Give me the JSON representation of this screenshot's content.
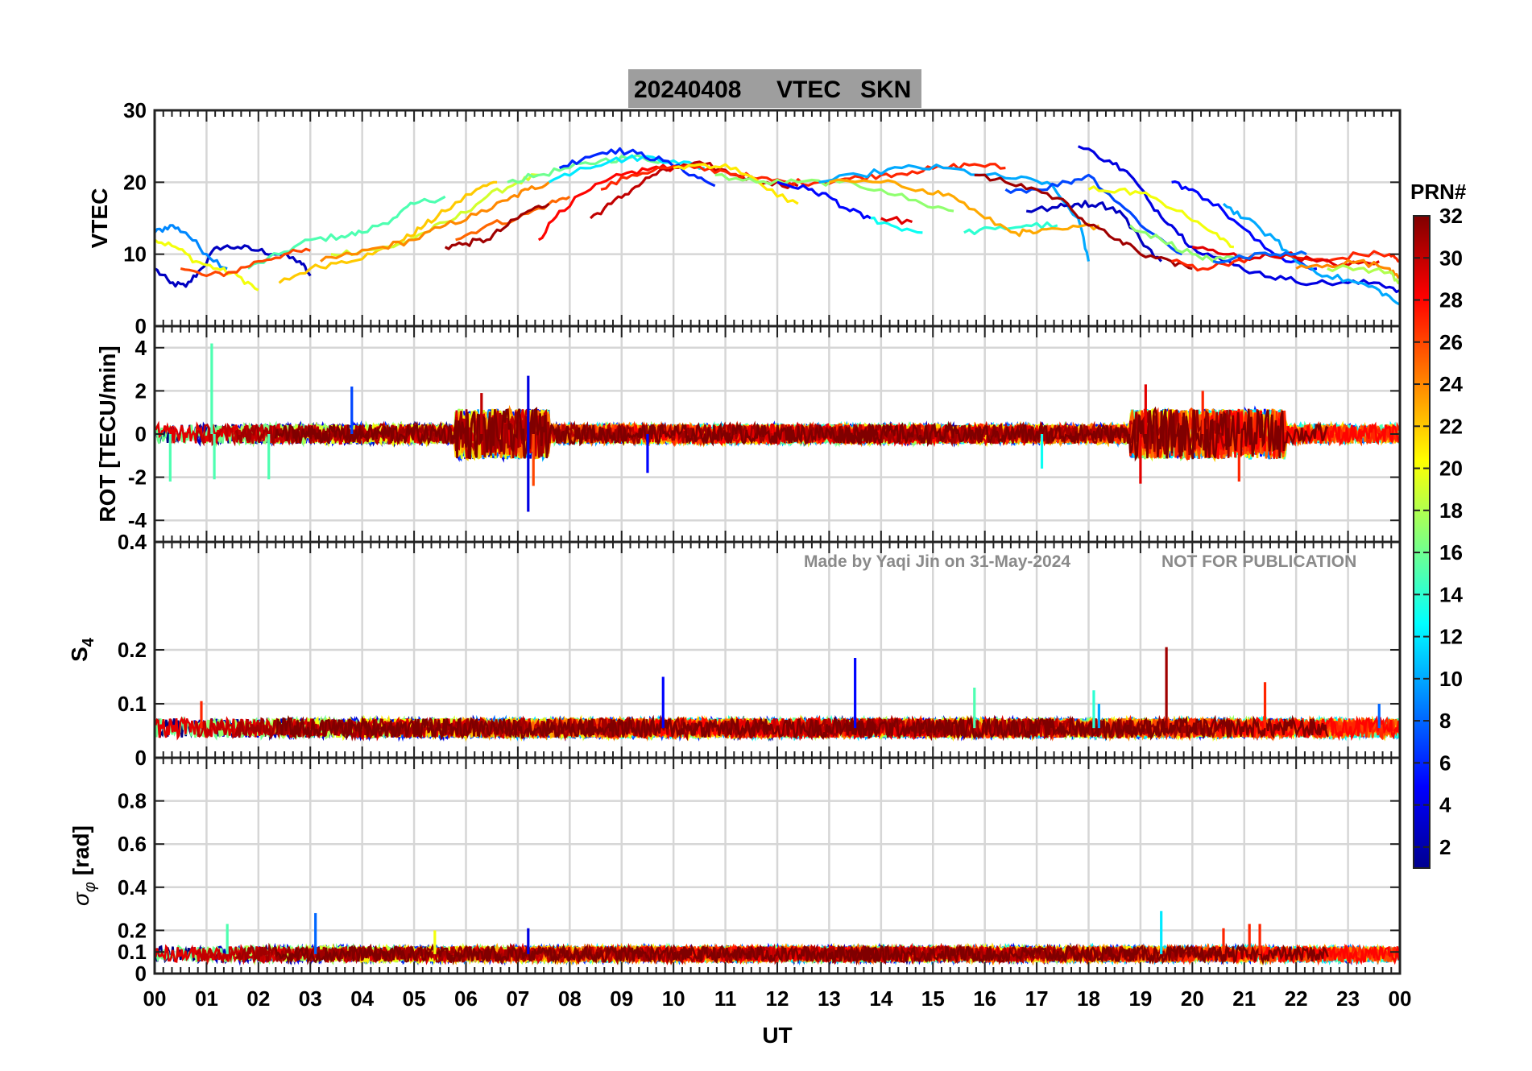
{
  "chart_data": {
    "type": "line",
    "title": {
      "date": "20240408",
      "quantity": "VTEC",
      "station": "SKN"
    },
    "xlabel": "UT",
    "x_ticks": [
      "00",
      "01",
      "02",
      "03",
      "04",
      "05",
      "06",
      "07",
      "08",
      "09",
      "10",
      "11",
      "12",
      "13",
      "14",
      "15",
      "16",
      "17",
      "18",
      "19",
      "20",
      "21",
      "22",
      "23",
      "00"
    ],
    "xlim": [
      0,
      24
    ],
    "watermark": {
      "author": "Made by Yaqi Jin on 31-May-2024",
      "notice": "NOT FOR PUBLICATION"
    },
    "colorbar": {
      "title": "PRN#",
      "range": [
        1,
        32
      ],
      "ticks": [
        2,
        4,
        6,
        8,
        10,
        12,
        14,
        16,
        18,
        20,
        22,
        24,
        26,
        28,
        30,
        32
      ],
      "colormap": "jet"
    },
    "panels": [
      {
        "name": "vtec",
        "ylabel": "VTEC",
        "ylim": [
          0,
          30
        ],
        "yticks": [
          0,
          10,
          20,
          30
        ],
        "series": [
          {
            "prn": 3,
            "x": [
              0.0,
              0.3,
              0.6,
              0.9,
              1.2,
              1.6,
              2.0,
              2.4,
              2.8,
              3.0
            ],
            "y": [
              8,
              6,
              5.5,
              8,
              11,
              11,
              10.5,
              10,
              9,
              7
            ]
          },
          {
            "prn": 9,
            "x": [
              0.0,
              0.3,
              0.6,
              1.0,
              1.4
            ],
            "y": [
              13,
              14,
              13,
              10,
              8
            ]
          },
          {
            "prn": 20,
            "x": [
              0.0,
              0.4,
              0.8,
              1.2,
              1.6,
              2.0
            ],
            "y": [
              12,
              11,
              9,
              8,
              7,
              5
            ]
          },
          {
            "prn": 15,
            "x": [
              1.8,
              2.4,
              3.0,
              3.6,
              4.0,
              4.6,
              5.0,
              5.6
            ],
            "y": [
              8,
              10,
              12,
              12.5,
              13,
              15,
              17,
              18
            ]
          },
          {
            "prn": 26,
            "x": [
              0.5,
              1.0,
              1.5,
              2.0,
              2.5,
              3.0
            ],
            "y": [
              8,
              7,
              7.5,
              9,
              10,
              10.5
            ]
          },
          {
            "prn": 22,
            "x": [
              2.4,
              3.0,
              3.6,
              4.2,
              4.8,
              5.2,
              5.6,
              6.2,
              6.6
            ],
            "y": [
              6,
              8,
              9,
              10,
              12,
              14,
              16,
              19,
              20
            ]
          },
          {
            "prn": 19,
            "x": [
              3.4,
              4.0,
              4.6,
              5.2,
              5.8,
              6.4,
              7.0,
              7.4
            ],
            "y": [
              10,
              10.5,
              11,
              13,
              15,
              18,
              20,
              21
            ]
          },
          {
            "prn": 24,
            "x": [
              3.2,
              3.8,
              4.4,
              5.0,
              5.6,
              6.2,
              6.8,
              7.2,
              7.6
            ],
            "y": [
              9,
              10,
              11,
              12,
              14,
              15.5,
              17.5,
              19,
              20
            ]
          },
          {
            "prn": 25,
            "x": [
              5.8,
              6.4,
              7.0,
              7.6,
              8.0
            ],
            "y": [
              12,
              14,
              15,
              17,
              18
            ]
          },
          {
            "prn": 31,
            "x": [
              5.6,
              6.0,
              6.4,
              6.8,
              7.2,
              7.6
            ],
            "y": [
              11,
              11.5,
              12,
              14,
              16,
              17
            ]
          },
          {
            "prn": 28,
            "x": [
              7.4,
              7.8,
              8.4,
              9.0,
              9.6,
              10.0
            ],
            "y": [
              12,
              16,
              19,
              21,
              22,
              22
            ]
          },
          {
            "prn": 16,
            "x": [
              6.8,
              7.4,
              8.0,
              8.6,
              9.2,
              9.8
            ],
            "y": [
              20,
              21,
              22,
              23,
              23.5,
              23
            ]
          },
          {
            "prn": 12,
            "x": [
              7.6,
              8.2,
              8.8,
              9.4,
              10.0,
              10.6
            ],
            "y": [
              20,
              22,
              23,
              23.5,
              23,
              22
            ]
          },
          {
            "prn": 6,
            "x": [
              7.8,
              8.3,
              8.8,
              9.3,
              9.8,
              10.4,
              10.8
            ],
            "y": [
              22,
              23.5,
              24.5,
              24,
              23,
              21,
              19.5
            ]
          },
          {
            "prn": 30,
            "x": [
              8.4,
              8.8,
              9.2,
              9.6,
              10.0,
              10.6,
              11.2,
              11.8,
              12.4
            ],
            "y": [
              15,
              17,
              19,
              21,
              22,
              22.5,
              21,
              20,
              19.5
            ]
          },
          {
            "prn": 27,
            "x": [
              8.6,
              9.2,
              9.8,
              10.4,
              11.0,
              11.6,
              12.2,
              12.8,
              13.4,
              14.0,
              14.6,
              15.2,
              15.8,
              16.4
            ],
            "y": [
              19,
              21,
              22,
              22,
              21.5,
              20.5,
              20,
              20,
              20.5,
              21,
              21.5,
              22,
              22.5,
              22
            ]
          },
          {
            "prn": 21,
            "x": [
              10.0,
              10.6,
              11.2,
              11.8,
              12.4
            ],
            "y": [
              22,
              22.5,
              22,
              19,
              17
            ]
          },
          {
            "prn": 17,
            "x": [
              10.8,
              11.6,
              12.4,
              13.2,
              14.0,
              14.8,
              15.4
            ],
            "y": [
              21,
              20,
              20,
              20,
              19,
              17,
              16
            ]
          },
          {
            "prn": 5,
            "x": [
              12.0,
              12.6,
              13.0,
              13.4,
              13.8
            ],
            "y": [
              20,
              19,
              18,
              16,
              15
            ]
          },
          {
            "prn": 10,
            "x": [
              12.8,
              13.6,
              14.4,
              15.2,
              16.0,
              16.6,
              17.2,
              17.8,
              18.0
            ],
            "y": [
              20,
              21,
              22,
              22,
              21,
              20.5,
              20,
              15,
              9
            ]
          },
          {
            "prn": 13,
            "x": [
              13.8,
              14.2,
              14.8
            ],
            "y": [
              15,
              14,
              13
            ]
          },
          {
            "prn": 29,
            "x": [
              14.0,
              14.6
            ],
            "y": [
              15,
              14.5
            ]
          },
          {
            "prn": 14,
            "x": [
              15.6,
              16.2,
              16.8,
              17.4
            ],
            "y": [
              13,
              13.5,
              14,
              14
            ]
          },
          {
            "prn": 23,
            "x": [
              13.0,
              14.0,
              14.8,
              15.4,
              16.0,
              16.6,
              17.0,
              17.6,
              18.2
            ],
            "y": [
              20,
              20,
              19,
              18,
              15,
              13,
              13,
              13.5,
              14
            ]
          },
          {
            "prn": 7,
            "x": [
              16.4,
              17.0,
              17.6,
              18.0,
              18.6,
              19.2,
              19.8
            ],
            "y": [
              19,
              19,
              20,
              21,
              17,
              13,
              10
            ]
          },
          {
            "prn": 3,
            "x": [
              16.8,
              17.4,
              17.8,
              18.2,
              18.6,
              19.0,
              19.4
            ],
            "y": [
              16,
              16.5,
              17,
              17,
              16,
              12,
              9
            ]
          },
          {
            "prn": 4,
            "x": [
              17.8,
              18.4,
              18.8,
              19.2,
              19.6,
              20.0,
              20.6,
              21.2,
              21.8,
              22.4,
              23.0,
              23.6,
              24.0
            ],
            "y": [
              25,
              23,
              21,
              17,
              14,
              11,
              9,
              7.5,
              6.5,
              6,
              6,
              6,
              5
            ]
          },
          {
            "prn": 31,
            "x": [
              15.8,
              16.4,
              17.0,
              17.6,
              18.0,
              18.6,
              19.0,
              19.6,
              20.0
            ],
            "y": [
              21,
              20,
              19,
              17,
              14,
              12,
              10,
              9,
              8
            ]
          },
          {
            "prn": 20,
            "x": [
              18.0,
              18.6,
              19.2,
              19.8,
              20.4,
              20.8
            ],
            "y": [
              19,
              19,
              18,
              16,
              13,
              11
            ]
          },
          {
            "prn": 17,
            "x": [
              18.8,
              19.4,
              20.0,
              20.4,
              20.8
            ],
            "y": [
              14,
              12,
              10,
              9,
              9.5
            ]
          },
          {
            "prn": 5,
            "x": [
              19.6,
              20.0,
              20.6,
              21.2,
              21.8,
              22.4
            ],
            "y": [
              20,
              19,
              16,
              12,
              9,
              8
            ]
          },
          {
            "prn": 10,
            "x": [
              20.6,
              21.0,
              21.6,
              22.0,
              22.6,
              23.2,
              23.6,
              24.0
            ],
            "y": [
              17,
              15,
              12,
              9,
              7,
              6,
              5,
              3
            ]
          },
          {
            "prn": 27,
            "x": [
              19.6,
              20.2,
              20.8,
              21.4,
              22.0,
              22.6,
              23.2,
              23.8,
              24.0
            ],
            "y": [
              9,
              8,
              9,
              10,
              9.5,
              9,
              10,
              10,
              9
            ]
          },
          {
            "prn": 29,
            "x": [
              20.0,
              20.6,
              21.2,
              21.8,
              22.4,
              23.0,
              23.6
            ],
            "y": [
              11,
              10,
              9.5,
              10,
              9,
              8.5,
              9
            ]
          },
          {
            "prn": 24,
            "x": [
              22.0,
              22.6,
              23.2,
              23.8,
              24.0
            ],
            "y": [
              8,
              8.5,
              9,
              8,
              7
            ]
          },
          {
            "prn": 18,
            "x": [
              22.6,
              23.2,
              23.8,
              24.0
            ],
            "y": [
              8,
              8,
              7.5,
              6
            ]
          },
          {
            "prn": 8,
            "x": [
              20.4,
              21.0,
              21.6,
              22.2
            ],
            "y": [
              9,
              9.5,
              10,
              10
            ]
          }
        ]
      },
      {
        "name": "rot",
        "ylabel": "ROT [TECU/min]",
        "ylim": [
          -5,
          5
        ],
        "yticks": [
          -4,
          -2,
          0,
          2,
          4
        ],
        "noise_baseline": 0,
        "noise_level": 0.45,
        "spikes": [
          {
            "prn": 15,
            "x": 1.1,
            "y": 4.2
          },
          {
            "prn": 15,
            "x": 1.15,
            "y": -2.1
          },
          {
            "prn": 15,
            "x": 0.3,
            "y": -2.2
          },
          {
            "prn": 15,
            "x": 2.2,
            "y": -2.1
          },
          {
            "prn": 7,
            "x": 3.8,
            "y": 2.2
          },
          {
            "prn": 4,
            "x": 7.2,
            "y": 2.7
          },
          {
            "prn": 4,
            "x": 7.2,
            "y": -3.6
          },
          {
            "prn": 26,
            "x": 7.3,
            "y": -2.4
          },
          {
            "prn": 5,
            "x": 9.5,
            "y": -1.8
          },
          {
            "prn": 30,
            "x": 6.3,
            "y": 1.9
          },
          {
            "prn": 29,
            "x": 19.0,
            "y": -2.3
          },
          {
            "prn": 29,
            "x": 19.1,
            "y": 2.3
          },
          {
            "prn": 27,
            "x": 20.2,
            "y": 2.0
          },
          {
            "prn": 27,
            "x": 20.9,
            "y": -2.2
          },
          {
            "prn": 13,
            "x": 17.1,
            "y": -1.6
          }
        ]
      },
      {
        "name": "s4",
        "ylabel": "S4",
        "ylim": [
          0,
          0.4
        ],
        "yticks": [
          0,
          0.1,
          0.2,
          0.4
        ],
        "noise_baseline": 0.055,
        "noise_level": 0.02,
        "spikes": [
          {
            "prn": 5,
            "x": 9.8,
            "y": 0.15
          },
          {
            "prn": 5,
            "x": 13.5,
            "y": 0.185
          },
          {
            "prn": 31,
            "x": 19.5,
            "y": 0.205
          },
          {
            "prn": 27,
            "x": 21.4,
            "y": 0.14
          },
          {
            "prn": 15,
            "x": 15.8,
            "y": 0.13
          },
          {
            "prn": 14,
            "x": 18.1,
            "y": 0.125
          },
          {
            "prn": 27,
            "x": 0.9,
            "y": 0.105
          },
          {
            "prn": 8,
            "x": 23.6,
            "y": 0.1
          },
          {
            "prn": 10,
            "x": 18.2,
            "y": 0.1
          }
        ]
      },
      {
        "name": "sigma_phi",
        "ylabel": "σ_φ [rad]",
        "ylim": [
          0,
          1
        ],
        "yticks": [
          0,
          0.1,
          0.2,
          0.4,
          0.6,
          0.8
        ],
        "noise_baseline": 0.09,
        "noise_level": 0.04,
        "spikes": [
          {
            "prn": 8,
            "x": 3.1,
            "y": 0.28
          },
          {
            "prn": 12,
            "x": 19.4,
            "y": 0.29
          },
          {
            "prn": 15,
            "x": 1.4,
            "y": 0.23
          },
          {
            "prn": 27,
            "x": 20.6,
            "y": 0.21
          },
          {
            "prn": 27,
            "x": 21.1,
            "y": 0.23
          },
          {
            "prn": 27,
            "x": 21.3,
            "y": 0.23
          },
          {
            "prn": 4,
            "x": 7.2,
            "y": 0.21
          },
          {
            "prn": 20,
            "x": 5.4,
            "y": 0.2
          }
        ]
      }
    ]
  }
}
